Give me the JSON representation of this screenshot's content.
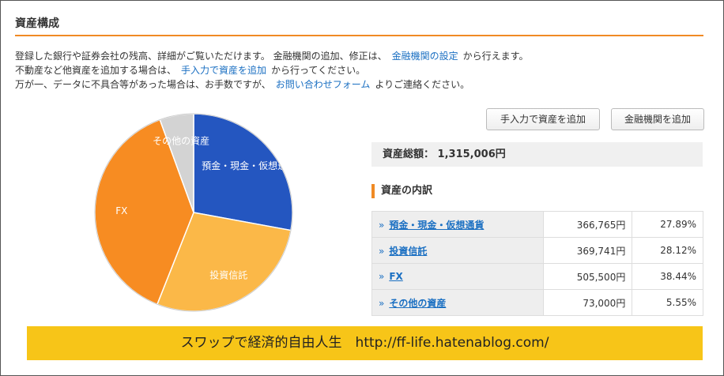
{
  "header": {
    "title": "資産構成"
  },
  "description": [
    {
      "before": "登録した銀行や証券会社の残高、詳細がご覧いただけます。 金融機関の追加、修正は、",
      "link": "金融機関の設定",
      "after": "から行えます。"
    },
    {
      "before": "不動産など他資産を追加する場合は、",
      "link": "手入力で資産を追加",
      "after": "から行ってください。"
    },
    {
      "before": "万が一、データに不具合等があった場合は、お手数ですが、",
      "link": "お問い合わせフォーム",
      "after": "よりご連絡ください。"
    }
  ],
  "buttons": [
    "手入力で資産を追加",
    "金融機関を追加"
  ],
  "total": {
    "label": "資産総額：",
    "value": "1,315,006円"
  },
  "breakdown": {
    "title": "資産の内訳",
    "rows": [
      [
        "預金・現金・仮想通貨",
        "366,765円",
        "27.89%"
      ],
      [
        "投資信託",
        "369,741円",
        "28.12%"
      ],
      [
        "FX",
        "505,500円",
        "38.44%"
      ],
      [
        "その他の資産",
        "73,000円",
        "5.55%"
      ]
    ]
  },
  "pie": {
    "values": [
      27.89,
      28.12,
      38.44,
      5.55
    ],
    "colors": [
      "#2456c0",
      "#fbb848",
      "#f78c22",
      "#d3d3d3"
    ]
  },
  "banner": "スワップで経済的自由人生　http://ff-life.hatenablog.com/"
}
